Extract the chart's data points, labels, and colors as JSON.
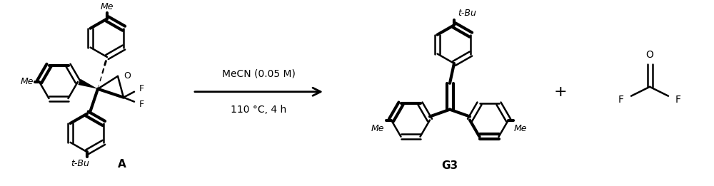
{
  "figsize": [
    10.0,
    2.61
  ],
  "dpi": 100,
  "bg_color": "#ffffff",
  "lw": 1.8,
  "lw_bold": 3.0,
  "arrow_text_top": "MeCN (0.05 M)",
  "arrow_text_bottom": "110 °C, 4 h",
  "label_A": "A",
  "label_G3": "G3",
  "plus_sign": "+"
}
